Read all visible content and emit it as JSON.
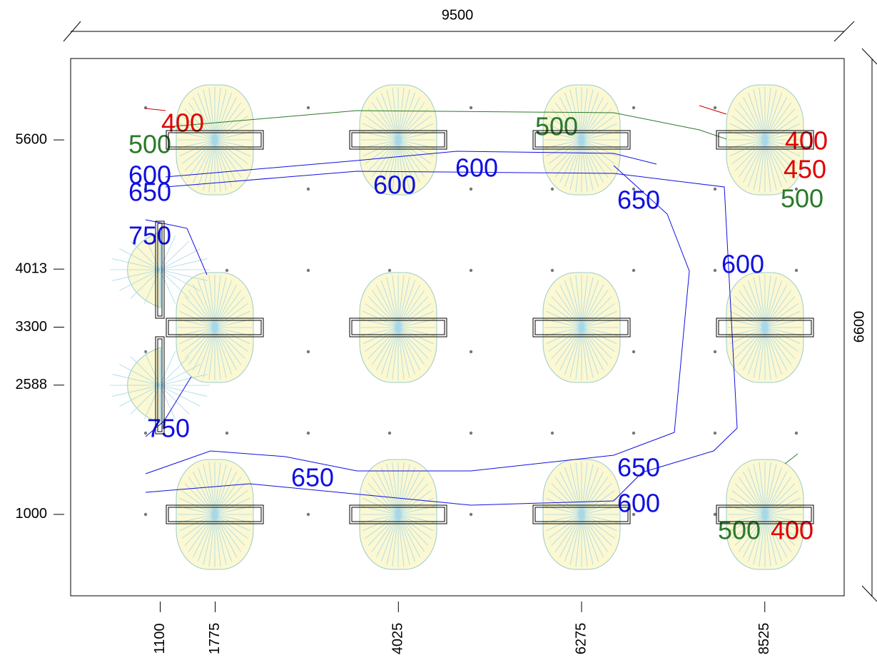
{
  "plan": {
    "width_label": "9500",
    "height_label": "6600",
    "y_ticks": [
      "5600",
      "4013",
      "3300",
      "2588",
      "1000"
    ],
    "x_ticks": [
      "1100",
      "1775",
      "4025",
      "6275",
      "8525"
    ],
    "contour_labels": [
      "400",
      "500",
      "600",
      "650",
      "750",
      "600",
      "600",
      "500",
      "650",
      "400",
      "450",
      "500",
      "600",
      "750",
      "650",
      "650",
      "600",
      "500",
      "400"
    ]
  }
}
